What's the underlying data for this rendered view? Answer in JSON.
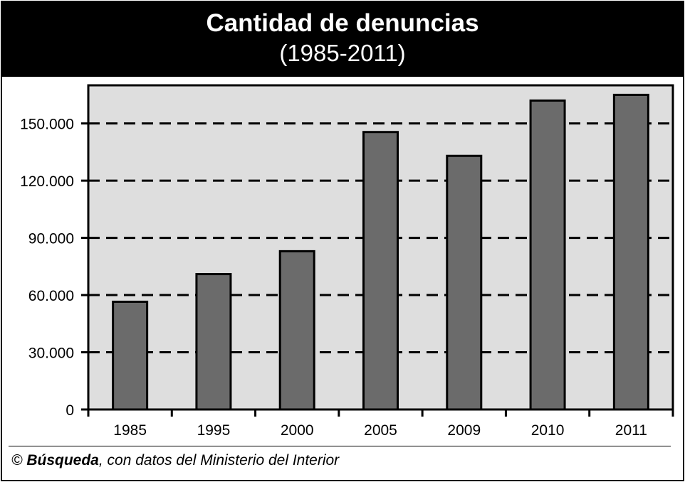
{
  "chart_data": {
    "type": "bar",
    "title": "Cantidad de denuncias",
    "subtitle": "(1985-2011)",
    "categories": [
      "1985",
      "1995",
      "2000",
      "2005",
      "2009",
      "2010",
      "2011"
    ],
    "values": [
      56500,
      71000,
      83000,
      145500,
      133000,
      162000,
      165000
    ],
    "ylim": [
      0,
      170000
    ],
    "yticks": [
      0,
      30000,
      60000,
      90000,
      120000,
      150000
    ],
    "ytick_labels": [
      "0",
      "30.000",
      "60.000",
      "90.000",
      "120.000",
      "150.000"
    ],
    "grid": "dashed horizontal",
    "xlabel": "",
    "ylabel": "",
    "colors": {
      "bar": "#6b6b6b",
      "plot_background": "#dedede",
      "header": "#000000"
    }
  },
  "footer": {
    "symbol": "©",
    "brand": "Búsqueda",
    "text": ", con datos del Ministerio del Interior"
  }
}
